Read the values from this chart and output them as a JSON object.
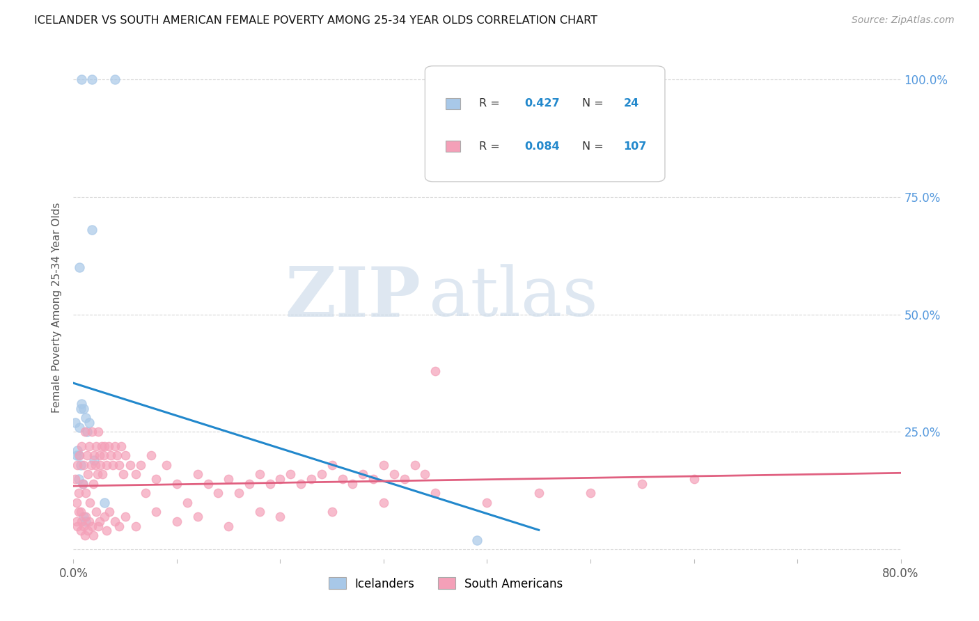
{
  "title": "ICELANDER VS SOUTH AMERICAN FEMALE POVERTY AMONG 25-34 YEAR OLDS CORRELATION CHART",
  "source": "Source: ZipAtlas.com",
  "ylabel": "Female Poverty Among 25-34 Year Olds",
  "xlim": [
    0.0,
    0.8
  ],
  "ylim": [
    -0.02,
    1.05
  ],
  "icelanders_R": 0.427,
  "icelanders_N": 24,
  "south_americans_R": 0.084,
  "south_americans_N": 107,
  "icelander_color": "#a8c8e8",
  "icelander_line_color": "#2288cc",
  "south_american_color": "#f4a0b8",
  "south_american_line_color": "#e06080",
  "watermark_zip": "ZIP",
  "watermark_atlas": "atlas",
  "icelanders_x": [
    0.008,
    0.018,
    0.04,
    0.006,
    0.007,
    0.008,
    0.01,
    0.012,
    0.015,
    0.018,
    0.002,
    0.004,
    0.005,
    0.006,
    0.007,
    0.009,
    0.01,
    0.012,
    0.003,
    0.005,
    0.013,
    0.02,
    0.03,
    0.39
  ],
  "icelanders_y": [
    1.0,
    1.0,
    1.0,
    0.6,
    0.3,
    0.31,
    0.3,
    0.28,
    0.27,
    0.68,
    0.27,
    0.21,
    0.2,
    0.26,
    0.18,
    0.14,
    0.07,
    0.06,
    0.2,
    0.15,
    0.25,
    0.19,
    0.1,
    0.02
  ],
  "south_americans_x": [
    0.002,
    0.003,
    0.004,
    0.005,
    0.006,
    0.007,
    0.008,
    0.009,
    0.01,
    0.011,
    0.012,
    0.013,
    0.014,
    0.015,
    0.016,
    0.017,
    0.018,
    0.019,
    0.02,
    0.021,
    0.022,
    0.023,
    0.024,
    0.025,
    0.026,
    0.027,
    0.028,
    0.029,
    0.03,
    0.032,
    0.034,
    0.036,
    0.038,
    0.04,
    0.042,
    0.044,
    0.046,
    0.048,
    0.05,
    0.055,
    0.06,
    0.065,
    0.07,
    0.075,
    0.08,
    0.09,
    0.1,
    0.11,
    0.12,
    0.13,
    0.14,
    0.15,
    0.16,
    0.17,
    0.18,
    0.19,
    0.2,
    0.21,
    0.22,
    0.23,
    0.24,
    0.25,
    0.26,
    0.27,
    0.28,
    0.29,
    0.3,
    0.31,
    0.32,
    0.33,
    0.34,
    0.35,
    0.003,
    0.005,
    0.008,
    0.01,
    0.012,
    0.015,
    0.018,
    0.022,
    0.025,
    0.03,
    0.035,
    0.04,
    0.05,
    0.06,
    0.08,
    0.1,
    0.12,
    0.15,
    0.18,
    0.2,
    0.25,
    0.3,
    0.35,
    0.4,
    0.45,
    0.5,
    0.55,
    0.6,
    0.004,
    0.007,
    0.011,
    0.014,
    0.019,
    0.024,
    0.032,
    0.044
  ],
  "south_americans_y": [
    0.15,
    0.1,
    0.18,
    0.12,
    0.2,
    0.08,
    0.22,
    0.14,
    0.18,
    0.25,
    0.12,
    0.2,
    0.16,
    0.22,
    0.1,
    0.18,
    0.25,
    0.14,
    0.2,
    0.18,
    0.22,
    0.16,
    0.25,
    0.2,
    0.18,
    0.22,
    0.16,
    0.2,
    0.22,
    0.18,
    0.22,
    0.2,
    0.18,
    0.22,
    0.2,
    0.18,
    0.22,
    0.16,
    0.2,
    0.18,
    0.16,
    0.18,
    0.12,
    0.2,
    0.15,
    0.18,
    0.14,
    0.1,
    0.16,
    0.14,
    0.12,
    0.15,
    0.12,
    0.14,
    0.16,
    0.14,
    0.15,
    0.16,
    0.14,
    0.15,
    0.16,
    0.18,
    0.15,
    0.14,
    0.16,
    0.15,
    0.18,
    0.16,
    0.15,
    0.18,
    0.16,
    0.38,
    0.06,
    0.08,
    0.06,
    0.05,
    0.07,
    0.06,
    0.05,
    0.08,
    0.06,
    0.07,
    0.08,
    0.06,
    0.07,
    0.05,
    0.08,
    0.06,
    0.07,
    0.05,
    0.08,
    0.07,
    0.08,
    0.1,
    0.12,
    0.1,
    0.12,
    0.12,
    0.14,
    0.15,
    0.05,
    0.04,
    0.03,
    0.04,
    0.03,
    0.05,
    0.04,
    0.05
  ]
}
